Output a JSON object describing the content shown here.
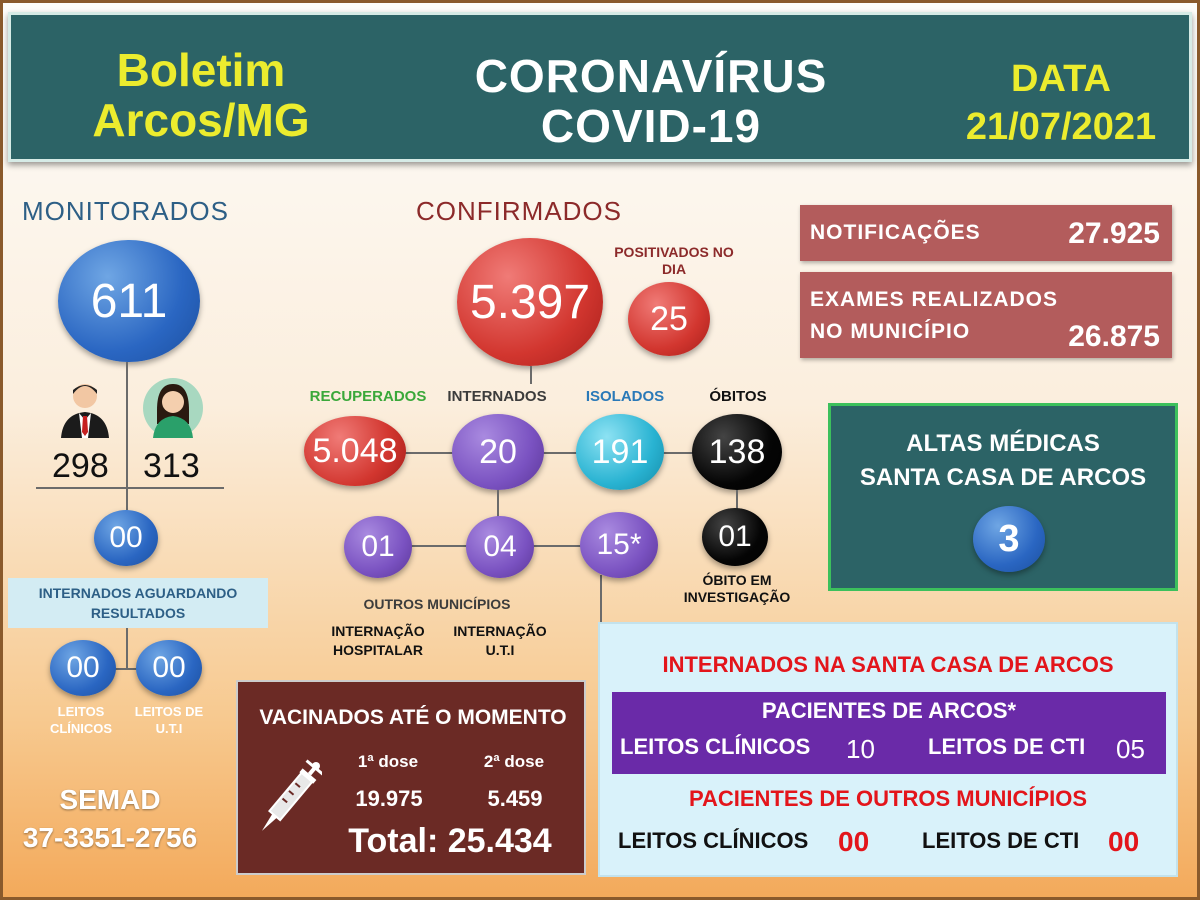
{
  "header": {
    "left_line1": "Boletim",
    "left_line2": "Arcos/MG",
    "center_line1": "CORONAVÍRUS",
    "center_line2": "COVID-19",
    "right_line1": "DATA",
    "right_line2": "21/07/2021"
  },
  "monitorados": {
    "title": "MONITORADOS",
    "total": "611",
    "male": "298",
    "female": "313",
    "internados_aguardando": "00",
    "internados_aguardando_label": "INTERNADOS AGUARDANDO RESULTADOS",
    "leitos_clinicos": "00",
    "leitos_uti": "00",
    "leitos_clinicos_label": "LEITOS CLÍNICOS",
    "leitos_uti_label": "LEITOS DE U.T.I"
  },
  "semad": {
    "name": "SEMAD",
    "phone": "37-3351-2756"
  },
  "confirmados": {
    "title": "CONFIRMADOS",
    "total": "5.397",
    "positivados_label": "POSITIVADOS NO DIA",
    "positivados": "25",
    "recuperados_label": "RECUPERADOS",
    "recuperados": "5.048",
    "internados_label": "INTERNADOS",
    "internados": "20",
    "isolados_label": "ISOLADOS",
    "isolados": "191",
    "obitos_label": "ÓBITOS",
    "obitos": "138",
    "outros_municipios": "01",
    "internacao_hospitalar": "04",
    "internacao_uti": "15*",
    "obito_investigacao": "01",
    "obito_investigacao_label": "ÓBITO EM INVESTIGAÇÃO",
    "outros_municipios_label": "OUTROS MUNICÍPIOS",
    "internacao_hospitalar_label": "INTERNAÇÃO HOSPITALAR",
    "internacao_uti_label": "INTERNAÇÃO U.T.I"
  },
  "stats": {
    "notificacoes_label": "NOTIFICAÇÕES",
    "notificacoes": "27.925",
    "exames_label_line1": "EXAMES REALIZADOS",
    "exames_label_line2": "NO MUNICÍPIO",
    "exames": "26.875"
  },
  "altas": {
    "line1": "ALTAS MÉDICAS",
    "line2": "SANTA CASA DE ARCOS",
    "value": "3"
  },
  "vacinados": {
    "title": "VACINADOS ATÉ O MOMENTO",
    "dose1_label": "1ª dose",
    "dose2_label": "2ª dose",
    "dose1": "19.975",
    "dose2": "5.459",
    "total": "Total: 25.434"
  },
  "santa_casa": {
    "title": "INTERNADOS NA SANTA CASA DE ARCOS",
    "arcos_title": "PACIENTES DE ARCOS*",
    "arcos_clinicos_label": "LEITOS CLÍNICOS",
    "arcos_clinicos": "10",
    "arcos_cti_label": "LEITOS DE CTI",
    "arcos_cti": "05",
    "outros_title": "PACIENTES DE OUTROS MUNICÍPIOS",
    "outros_clinicos_label": "LEITOS CLÍNICOS",
    "outros_clinicos": "00",
    "outros_cti_label": "LEITOS DE CTI",
    "outros_cti": "00"
  },
  "colors": {
    "header_bg": "#2c6366",
    "header_yellow": "#ecec2e",
    "confirm_title": "#8c2a2a",
    "monitor_title": "#2d5f86",
    "recuperados_green": "#3aa83a",
    "isolados_blue": "#2a79b8",
    "santa_casa_red": "#e3151b",
    "purple_bar": "#6a2aa8"
  }
}
